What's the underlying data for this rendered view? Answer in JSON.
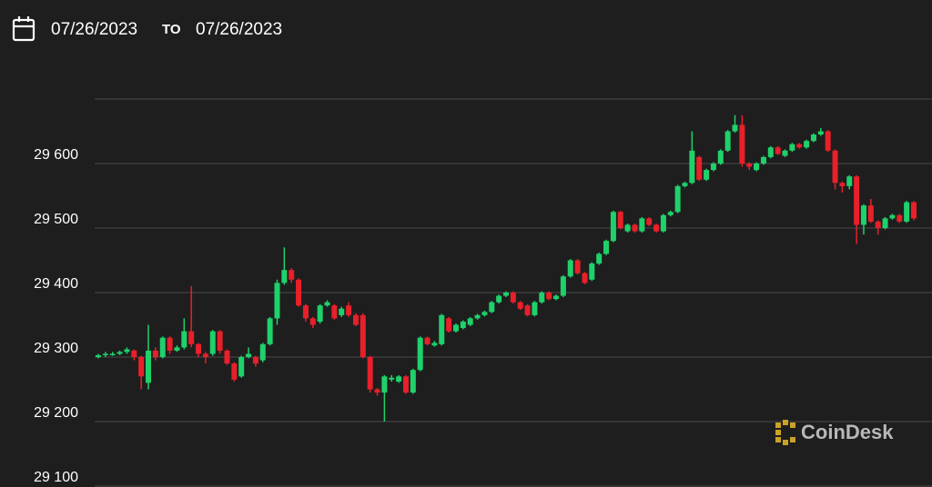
{
  "header": {
    "from": "07/26/2023",
    "to_label": "TO",
    "to": "07/26/2023"
  },
  "logo": "CoinDesk",
  "chart_data": {
    "type": "candlestick",
    "up_color": "#1fd16b",
    "down_color": "#e8202a",
    "grid": true,
    "ylim": [
      29100,
      29700
    ],
    "yticks": [
      {
        "value": 29100,
        "label": "29 100"
      },
      {
        "value": 29200,
        "label": "29 200"
      },
      {
        "value": 29300,
        "label": "29 300"
      },
      {
        "value": 29400,
        "label": "29 400"
      },
      {
        "value": 29500,
        "label": "29 500"
      },
      {
        "value": 29600,
        "label": "29 600"
      },
      {
        "value": 29700,
        "label": null
      }
    ],
    "open": [
      29300,
      29303,
      29305,
      29305,
      29308,
      29310,
      29300,
      29260,
      29310,
      29300,
      29330,
      29310,
      29315,
      29340,
      29320,
      29305,
      29305,
      29340,
      29310,
      29290,
      29270,
      29300,
      29300,
      29295,
      29320,
      29360,
      29415,
      29435,
      29420,
      29380,
      29360,
      29355,
      29380,
      29380,
      29365,
      29380,
      29365,
      29365,
      29300,
      29250,
      29245,
      29265,
      29262,
      29270,
      29245,
      29280,
      29330,
      29318,
      29320,
      29360,
      29340,
      29345,
      29350,
      29360,
      29365,
      29370,
      29385,
      29395,
      29400,
      29385,
      29380,
      29365,
      29385,
      29400,
      29390,
      29395,
      29425,
      29450,
      29430,
      29420,
      29445,
      29460,
      29480,
      29525,
      29495,
      29505,
      29495,
      29515,
      29505,
      29495,
      29520,
      29525,
      29565,
      29570,
      29610,
      29575,
      29590,
      29600,
      29620,
      29650,
      29660,
      29600,
      29590,
      29600,
      29610,
      29625,
      29612,
      29620,
      29630,
      29625,
      29635,
      29645,
      29650,
      29620,
      29570,
      29565,
      29580,
      29505,
      29535,
      29510,
      29500,
      29515,
      29520,
      29510,
      29540
    ],
    "high": [
      29305,
      29308,
      29308,
      29310,
      29315,
      29312,
      29302,
      29350,
      29315,
      29332,
      29332,
      29318,
      29360,
      29410,
      29322,
      29308,
      29342,
      29342,
      29312,
      29292,
      29302,
      29315,
      29302,
      29322,
      29362,
      29420,
      29470,
      29438,
      29422,
      29382,
      29362,
      29382,
      29388,
      29382,
      29378,
      29385,
      29368,
      29368,
      29302,
      29252,
      29272,
      29272,
      29272,
      29272,
      29282,
      29332,
      29332,
      29325,
      29367,
      29362,
      29352,
      29357,
      29362,
      29367,
      29372,
      29387,
      29397,
      29402,
      29402,
      29387,
      29382,
      29387,
      29402,
      29402,
      29397,
      29427,
      29452,
      29452,
      29432,
      29447,
      29462,
      29482,
      29527,
      29527,
      29507,
      29507,
      29517,
      29517,
      29507,
      29522,
      29527,
      29567,
      29572,
      29650,
      29612,
      29592,
      29602,
      29622,
      29652,
      29675,
      29675,
      29602,
      29602,
      29612,
      29627,
      29627,
      29622,
      29632,
      29632,
      29637,
      29647,
      29655,
      29652,
      29622,
      29572,
      29582,
      29582,
      29537,
      29545,
      29512,
      29517,
      29522,
      29522,
      29542,
      29542
    ],
    "low": [
      29298,
      29300,
      29302,
      29303,
      29305,
      29295,
      29250,
      29250,
      29295,
      29298,
      29305,
      29308,
      29312,
      29315,
      29300,
      29290,
      29302,
      29305,
      29288,
      29262,
      29268,
      29298,
      29285,
      29292,
      29318,
      29350,
      29412,
      29415,
      29378,
      29355,
      29345,
      29352,
      29378,
      29358,
      29362,
      29362,
      29348,
      29298,
      29245,
      29240,
      29200,
      29262,
      29260,
      29243,
      29243,
      29278,
      29318,
      29316,
      29318,
      29338,
      29338,
      29343,
      29348,
      29358,
      29363,
      29368,
      29383,
      29393,
      29383,
      29373,
      29363,
      29363,
      29383,
      29388,
      29388,
      29393,
      29423,
      29428,
      29413,
      29418,
      29443,
      29458,
      29478,
      29498,
      29493,
      29493,
      29493,
      29503,
      29493,
      29493,
      29518,
      29523,
      29563,
      29568,
      29573,
      29573,
      29588,
      29598,
      29618,
      29648,
      29595,
      29590,
      29588,
      29598,
      29608,
      29613,
      29610,
      29618,
      29623,
      29623,
      29633,
      29643,
      29618,
      29560,
      29555,
      29560,
      29475,
      29490,
      29508,
      29490,
      29498,
      29513,
      29508,
      29508,
      29512
    ],
    "close": [
      29303,
      29305,
      29305,
      29308,
      29312,
      29300,
      29270,
      29310,
      29300,
      29330,
      29310,
      29315,
      29340,
      29320,
      29305,
      29300,
      29340,
      29310,
      29290,
      29265,
      29300,
      29305,
      29290,
      29320,
      29360,
      29415,
      29435,
      29420,
      29380,
      29360,
      29350,
      29380,
      29385,
      29360,
      29375,
      29365,
      29350,
      29300,
      29250,
      29245,
      29270,
      29268,
      29270,
      29245,
      29280,
      29330,
      29320,
      29322,
      29365,
      29340,
      29350,
      29355,
      29360,
      29365,
      29370,
      29385,
      29395,
      29400,
      29385,
      29375,
      29365,
      29385,
      29400,
      29390,
      29395,
      29425,
      29450,
      29430,
      29415,
      29445,
      29460,
      29480,
      29525,
      29500,
      29505,
      29495,
      29515,
      29505,
      29495,
      29520,
      29525,
      29565,
      29570,
      29620,
      29575,
      29590,
      29600,
      29620,
      29650,
      29660,
      29600,
      29595,
      29600,
      29610,
      29625,
      29615,
      29620,
      29630,
      29625,
      29635,
      29645,
      29650,
      29620,
      29570,
      29565,
      29580,
      29505,
      29535,
      29510,
      29500,
      29515,
      29520,
      29510,
      29540,
      29515
    ]
  }
}
